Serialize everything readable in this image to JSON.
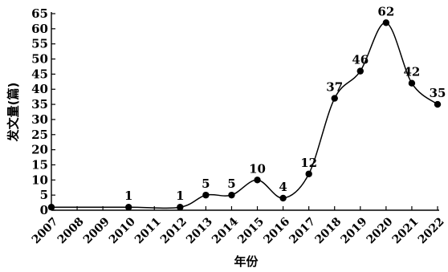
{
  "chart_data": {
    "type": "line",
    "xlabel": "年份",
    "ylabel": "发文量(篇)",
    "ylim": [
      0,
      65
    ],
    "yticks": [
      0,
      5,
      10,
      15,
      20,
      25,
      30,
      35,
      40,
      45,
      50,
      55,
      60,
      65
    ],
    "categories": [
      "2007",
      "2008",
      "2009",
      "2010",
      "2011",
      "2012",
      "2013",
      "2014",
      "2015",
      "2016",
      "2017",
      "2018",
      "2019",
      "2020",
      "2021",
      "2022"
    ],
    "points": [
      {
        "year": "2007",
        "value": 1,
        "label": ""
      },
      {
        "year": "2010",
        "value": 1,
        "label": "1"
      },
      {
        "year": "2012",
        "value": 1,
        "label": "1"
      },
      {
        "year": "2013",
        "value": 5,
        "label": "5"
      },
      {
        "year": "2014",
        "value": 5,
        "label": "5"
      },
      {
        "year": "2015",
        "value": 10,
        "label": "10"
      },
      {
        "year": "2016",
        "value": 4,
        "label": "4"
      },
      {
        "year": "2017",
        "value": 12,
        "label": "12"
      },
      {
        "year": "2018",
        "value": 37,
        "label": "37"
      },
      {
        "year": "2019",
        "value": 46,
        "label": "46"
      },
      {
        "year": "2020",
        "value": 62,
        "label": "62"
      },
      {
        "year": "2021",
        "value": 42,
        "label": "42"
      },
      {
        "year": "2022",
        "value": 35,
        "label": "35"
      }
    ],
    "smooth": true,
    "grid": false
  }
}
